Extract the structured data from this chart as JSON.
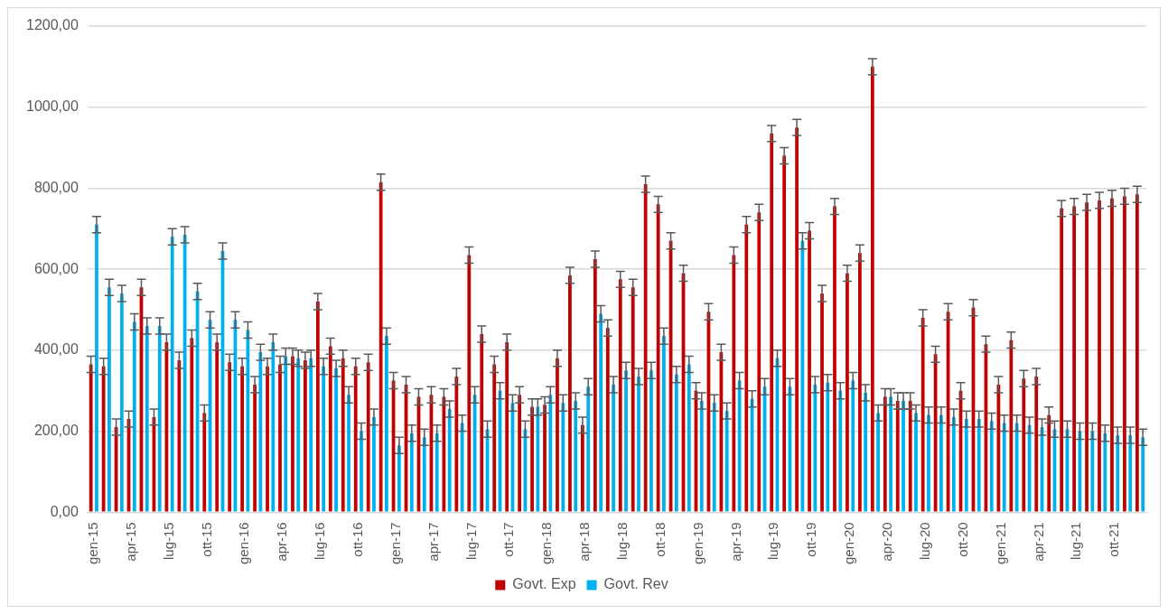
{
  "chart_data": {
    "type": "bar",
    "categories": [
      "gen-15",
      null,
      null,
      "apr-15",
      null,
      null,
      "lug-15",
      null,
      null,
      "ott-15",
      null,
      null,
      "gen-16",
      null,
      null,
      "apr-16",
      null,
      null,
      "lug-16",
      null,
      null,
      "ott-16",
      null,
      null,
      "gen-17",
      null,
      null,
      "apr-17",
      null,
      null,
      "lug-17",
      null,
      null,
      "ott-17",
      null,
      null,
      "gen-18",
      null,
      null,
      "apr-18",
      null,
      null,
      "lug-18",
      null,
      null,
      "ott-18",
      null,
      null,
      "gen-19",
      null,
      null,
      "apr-19",
      null,
      null,
      "lug-19",
      null,
      null,
      "ott-19",
      null,
      null,
      "gen-20",
      null,
      null,
      "apr-20",
      null,
      null,
      "lug-20",
      null,
      null,
      "ott-20",
      null,
      null,
      "gen-21",
      null,
      null,
      "apr-21",
      null,
      null,
      "lug-21",
      null,
      null,
      "ott-21",
      null,
      null
    ],
    "series": [
      {
        "name": "Govt. Exp",
        "color": "#c00000",
        "values": [
          365,
          360,
          210,
          230,
          555,
          235,
          420,
          375,
          430,
          245,
          420,
          370,
          360,
          315,
          360,
          365,
          385,
          375,
          520,
          410,
          380,
          360,
          370,
          815,
          325,
          315,
          285,
          290,
          285,
          335,
          635,
          440,
          365,
          420,
          290,
          260,
          265,
          380,
          585,
          215,
          625,
          455,
          575,
          555,
          810,
          760,
          670,
          590,
          300,
          495,
          395,
          635,
          710,
          740,
          935,
          880,
          950,
          695,
          540,
          755,
          590,
          640,
          1100,
          285,
          275,
          275,
          480,
          390,
          495,
          300,
          505,
          415,
          315,
          425,
          330,
          335,
          240,
          750,
          755,
          765,
          770,
          775,
          780,
          785
        ],
        "errors": [
          20,
          20,
          20,
          20,
          20,
          20,
          20,
          20,
          20,
          20,
          20,
          20,
          20,
          20,
          20,
          20,
          20,
          20,
          20,
          20,
          20,
          20,
          20,
          20,
          20,
          20,
          20,
          20,
          20,
          20,
          20,
          20,
          20,
          20,
          20,
          20,
          20,
          20,
          20,
          20,
          20,
          20,
          20,
          20,
          20,
          20,
          20,
          20,
          20,
          20,
          20,
          20,
          20,
          20,
          20,
          20,
          20,
          20,
          20,
          20,
          20,
          20,
          20,
          20,
          20,
          20,
          20,
          20,
          20,
          20,
          20,
          20,
          20,
          20,
          20,
          20,
          20,
          20,
          20,
          20,
          20,
          20,
          20,
          20
        ]
      },
      {
        "name": "Govt. Rev",
        "color": "#00b0f0",
        "values": [
          710,
          555,
          540,
          470,
          460,
          460,
          680,
          685,
          545,
          475,
          645,
          475,
          450,
          395,
          420,
          385,
          380,
          380,
          360,
          355,
          290,
          200,
          235,
          435,
          165,
          195,
          185,
          195,
          255,
          220,
          290,
          205,
          300,
          270,
          205,
          260,
          290,
          270,
          275,
          310,
          490,
          315,
          350,
          335,
          350,
          435,
          340,
          365,
          275,
          270,
          250,
          325,
          280,
          310,
          380,
          310,
          670,
          315,
          320,
          300,
          325,
          295,
          245,
          285,
          275,
          245,
          240,
          240,
          235,
          230,
          230,
          225,
          220,
          220,
          215,
          210,
          205,
          205,
          200,
          200,
          195,
          190,
          190,
          185
        ],
        "errors": [
          20,
          20,
          20,
          20,
          20,
          20,
          20,
          20,
          20,
          20,
          20,
          20,
          20,
          20,
          20,
          20,
          20,
          20,
          20,
          20,
          20,
          20,
          20,
          20,
          20,
          20,
          20,
          20,
          20,
          20,
          20,
          20,
          20,
          20,
          20,
          20,
          20,
          20,
          20,
          20,
          20,
          20,
          20,
          20,
          20,
          20,
          20,
          20,
          20,
          20,
          20,
          20,
          20,
          20,
          20,
          20,
          20,
          20,
          20,
          20,
          20,
          20,
          20,
          20,
          20,
          20,
          20,
          20,
          20,
          20,
          20,
          20,
          20,
          20,
          20,
          20,
          20,
          20,
          20,
          20,
          20,
          20,
          20,
          20
        ]
      }
    ],
    "ylim": [
      0,
      1200
    ],
    "yticks": [
      {
        "value": 0,
        "label": "0,00"
      },
      {
        "value": 200,
        "label": "200,00"
      },
      {
        "value": 400,
        "label": "400,00"
      },
      {
        "value": 600,
        "label": "600,00"
      },
      {
        "value": 800,
        "label": "800,00"
      },
      {
        "value": 1000,
        "label": "1000,00"
      },
      {
        "value": 1200,
        "label": "1200,00"
      }
    ],
    "grid": "y",
    "legend": "bottom"
  }
}
